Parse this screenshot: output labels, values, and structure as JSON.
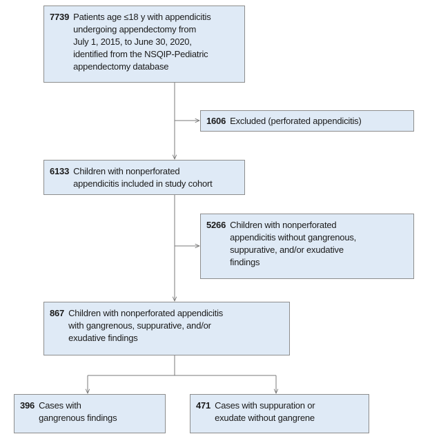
{
  "nodes": [
    {
      "count": 7739,
      "lines": [
        "Patients age ≤18 y with appendicitis",
        "undergoing appendectomy from",
        "July 1, 2015, to June 30, 2020,",
        "identified from the NSQIP-Pediatric",
        "appendectomy database"
      ]
    },
    {
      "count": 1606,
      "lines": [
        "Excluded (perforated appendicitis)"
      ]
    },
    {
      "count": 6133,
      "lines": [
        "Children with nonperforated",
        "appendicitis included in study cohort"
      ]
    },
    {
      "count": 5266,
      "lines": [
        "Children with nonperforated",
        "appendicitis without gangrenous,",
        "suppurative, and/or exudative",
        "findings"
      ]
    },
    {
      "count": 867,
      "lines": [
        "Children with nonperforated appendicitis",
        "with gangrenous, suppurative, and/or",
        "exudative findings"
      ]
    },
    {
      "count": 396,
      "lines": [
        "Cases with",
        "gangrenous findings"
      ]
    },
    {
      "count": 471,
      "lines": [
        "Cases with suppuration or",
        "exudate without gangrene"
      ]
    }
  ]
}
